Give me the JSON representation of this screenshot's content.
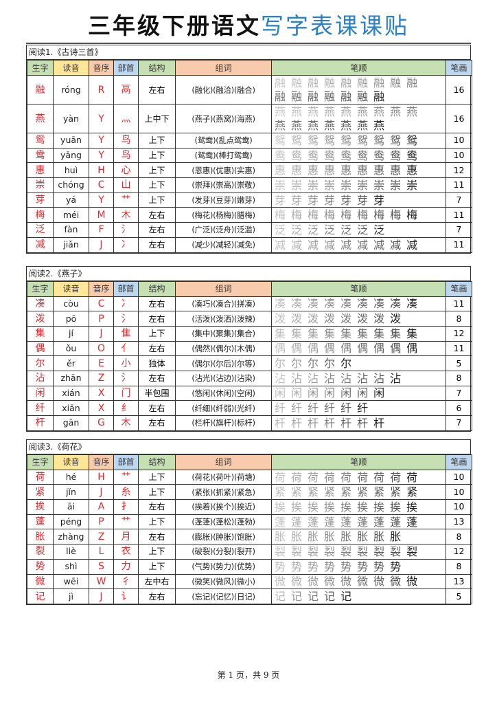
{
  "title": {
    "black": "三年级下册语文",
    "blue": "写字表课课贴"
  },
  "headers": [
    "生字",
    "读音",
    "音序",
    "部首",
    "结构",
    "组词",
    "笔顺",
    "笔画"
  ],
  "colors": {
    "title_blue": "#2a7fc9",
    "char_red": "#e8262a",
    "header_green": "#c6e0b4",
    "header_yellow": "#ffe699",
    "header_orange": "#f8cbad",
    "header_blue": "#bdd7ee"
  },
  "sections": [
    {
      "title": "阅读1.《古诗三首》",
      "rows": [
        {
          "char": "融",
          "pinyin": "róng",
          "initial": "R",
          "radical": "鬲",
          "structure": "左右",
          "words": "(融化)(融洽)(融合)",
          "strokes": "16"
        },
        {
          "char": "燕",
          "pinyin": "yàn",
          "initial": "Y",
          "radical": "灬",
          "structure": "上中下",
          "words": "(燕子)(燕窝)(海燕)",
          "strokes": "16"
        },
        {
          "char": "鸳",
          "pinyin": "yuān",
          "initial": "Y",
          "radical": "鸟",
          "structure": "上下",
          "words": "(鸳鸯)(乱点鸳鸯)",
          "strokes": "10"
        },
        {
          "char": "鸯",
          "pinyin": "yāng",
          "initial": "Y",
          "radical": "鸟",
          "structure": "上下",
          "words": "(鸳鸯)(棒打鸳鸯)",
          "strokes": "10"
        },
        {
          "char": "惠",
          "pinyin": "huì",
          "initial": "H",
          "radical": "心",
          "structure": "上下",
          "words": "(恩惠)(优惠)(实惠)",
          "strokes": "12"
        },
        {
          "char": "崇",
          "pinyin": "chóng",
          "initial": "C",
          "radical": "山",
          "structure": "上下",
          "words": "(崇拜)(崇高)(崇敬)",
          "strokes": "11"
        },
        {
          "char": "芽",
          "pinyin": "yá",
          "initial": "Y",
          "radical": "艹",
          "structure": "上下",
          "words": "(发芽)(豆芽)(嫩芽)",
          "strokes": "7"
        },
        {
          "char": "梅",
          "pinyin": "méi",
          "initial": "M",
          "radical": "木",
          "structure": "左右",
          "words": "(梅花)(杨梅)(腊梅)",
          "strokes": "11"
        },
        {
          "char": "泛",
          "pinyin": "fàn",
          "initial": "F",
          "radical": "氵",
          "structure": "左右",
          "words": "(广泛)(泛舟)(泛滥)",
          "strokes": "7"
        },
        {
          "char": "减",
          "pinyin": "jiǎn",
          "initial": "J",
          "radical": "冫",
          "structure": "左右",
          "words": "(减少)(减轻)(减免)",
          "strokes": "11"
        }
      ]
    },
    {
      "title": "阅读2.《燕子》",
      "rows": [
        {
          "char": "凑",
          "pinyin": "còu",
          "initial": "C",
          "radical": "冫",
          "structure": "左右",
          "words": "(凑巧)(凑合)(拼凑)",
          "strokes": "11"
        },
        {
          "char": "泼",
          "pinyin": "pō",
          "initial": "P",
          "radical": "氵",
          "structure": "左右",
          "words": "(活泼)(泼洒)(泼辣)",
          "strokes": "8"
        },
        {
          "char": "集",
          "pinyin": "jí",
          "initial": "J",
          "radical": "隹",
          "structure": "上下",
          "words": "(集中)(聚集)(集合)",
          "strokes": "12"
        },
        {
          "char": "偶",
          "pinyin": "ǒu",
          "initial": "O",
          "radical": "亻",
          "structure": "左右",
          "words": "(偶然)(偶尔)(木偶)",
          "strokes": "11"
        },
        {
          "char": "尔",
          "pinyin": "ěr",
          "initial": "E",
          "radical": "小",
          "structure": "独体",
          "words": "(偶尔)(尔后)(尔等)",
          "strokes": "5"
        },
        {
          "char": "沾",
          "pinyin": "zhān",
          "initial": "Z",
          "radical": "氵",
          "structure": "左右",
          "words": "(沾光)(沾边)(沾染)",
          "strokes": "8"
        },
        {
          "char": "闲",
          "pinyin": "xián",
          "initial": "X",
          "radical": "门",
          "structure": "半包围",
          "words": "(悠闲)(休闲)(空闲)",
          "strokes": "7"
        },
        {
          "char": "纤",
          "pinyin": "xiān",
          "initial": "X",
          "radical": "纟",
          "structure": "左右",
          "words": "(纤细)(纤弱)(光纤)",
          "strokes": "6"
        },
        {
          "char": "杆",
          "pinyin": "gān",
          "initial": "G",
          "radical": "木",
          "structure": "左右",
          "words": "(栏杆)(旗杆)(标杆)",
          "strokes": "7"
        }
      ]
    },
    {
      "title": "阅读3.《荷花》",
      "rows": [
        {
          "char": "荷",
          "pinyin": "hé",
          "initial": "H",
          "radical": "艹",
          "structure": "上下",
          "words": "(荷花)(荷叶)(荷塘)",
          "strokes": "10"
        },
        {
          "char": "紧",
          "pinyin": "jǐn",
          "initial": "J",
          "radical": "糸",
          "structure": "上下",
          "words": "(紧张)(抓紧)(紧急)",
          "strokes": "10"
        },
        {
          "char": "挨",
          "pinyin": "āi",
          "initial": "A",
          "radical": "扌",
          "structure": "左右",
          "words": "(挨着)(挨个)(挨近)",
          "strokes": "10"
        },
        {
          "char": "蓬",
          "pinyin": "péng",
          "initial": "P",
          "radical": "艹",
          "structure": "上下",
          "words": "(蓬蓬)(蓬松)(蓬勃)",
          "strokes": "13"
        },
        {
          "char": "胀",
          "pinyin": "zhàng",
          "initial": "Z",
          "radical": "月",
          "structure": "左右",
          "words": "(膨胀)(肿胀)(饱胀)",
          "strokes": "8"
        },
        {
          "char": "裂",
          "pinyin": "liè",
          "initial": "L",
          "radical": "衣",
          "structure": "上下",
          "words": "(破裂)(分裂)(裂开)",
          "strokes": "12"
        },
        {
          "char": "势",
          "pinyin": "shì",
          "initial": "S",
          "radical": "力",
          "structure": "上下",
          "words": "(气势)(势力)(优势)",
          "strokes": "8"
        },
        {
          "char": "微",
          "pinyin": "wēi",
          "initial": "W",
          "radical": "彳",
          "structure": "左中右",
          "words": "(微笑)(微风)(微小)",
          "strokes": "13"
        },
        {
          "char": "记",
          "pinyin": "jì",
          "initial": "J",
          "radical": "讠",
          "structure": "左右",
          "words": "(忘记)(记忆)(日记)",
          "strokes": "5"
        }
      ]
    }
  ],
  "footer": "第 1 页，共 9 页"
}
